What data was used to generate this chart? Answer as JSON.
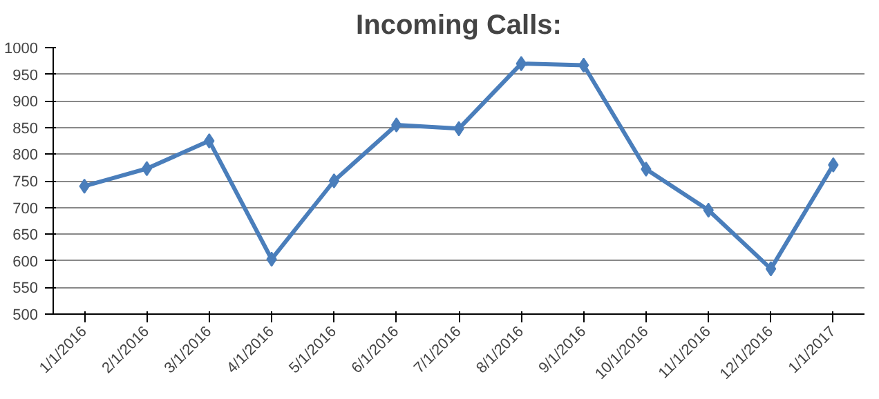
{
  "chart_data": {
    "type": "line",
    "title": "Incoming Calls:",
    "categories": [
      "1/1/2016",
      "2/1/2016",
      "3/1/2016",
      "4/1/2016",
      "5/1/2016",
      "6/1/2016",
      "7/1/2016",
      "8/1/2016",
      "9/1/2016",
      "10/1/2016",
      "11/1/2016",
      "12/1/2016",
      "1/1/2017"
    ],
    "series": [
      {
        "color": "#4a7ebb",
        "values": [
          740,
          773,
          825,
          603,
          750,
          855,
          848,
          970,
          967,
          772,
          695,
          585,
          780
        ]
      }
    ],
    "ylim": [
      500,
      1000
    ],
    "yticks": [
      500,
      550,
      600,
      650,
      700,
      750,
      800,
      850,
      900,
      950,
      1000
    ],
    "grid": "y",
    "marker": "diamond",
    "line_style": "solid"
  }
}
